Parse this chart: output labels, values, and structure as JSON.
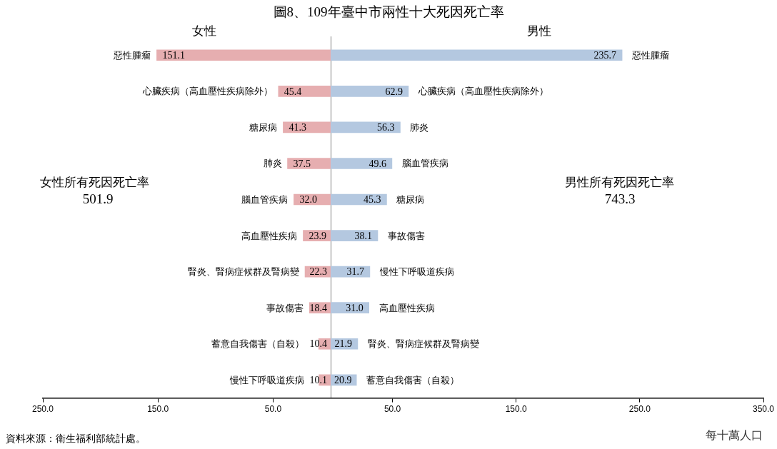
{
  "chart_data": [
    {
      "type": "bar",
      "orientation": "horizontal",
      "title": "圖8、109年臺中市兩性十大死因死亡率",
      "subtitle": "女性",
      "categories": [
        "惡性腫瘤",
        "心臟疾病（高血壓性疾病除外）",
        "糖尿病",
        "肺炎",
        "腦血管疾病",
        "高血壓性疾病",
        "腎炎、腎病症候群及腎病變",
        "事故傷害",
        "蓄意自我傷害（自殺）",
        "慢性下呼吸道疾病"
      ],
      "series": [
        {
          "color": "#e6aeb0",
          "values": [
            151.1,
            45.4,
            41.3,
            37.5,
            32.0,
            23.9,
            22.3,
            18.4,
            10.4,
            10.1
          ],
          "value_labels": [
            "151.1",
            "45.4",
            "41.3",
            "37.5",
            "32.0",
            "23.9",
            "22.3",
            "18.4",
            "10.4",
            "10.1"
          ]
        }
      ],
      "xlim": [
        250,
        0
      ],
      "xticks": [
        {
          "value": 250,
          "label": "250.0"
        },
        {
          "value": 150,
          "label": "150.0"
        },
        {
          "value": 50,
          "label": "50.0"
        }
      ],
      "grid": false,
      "legend": false,
      "annotations": [
        "女性所有死因死亡率",
        "501.9",
        "資料來源：衛生福利部統計處。"
      ]
    },
    {
      "type": "bar",
      "orientation": "horizontal",
      "subtitle": "男性",
      "xlabel": "每十萬人口",
      "categories": [
        "惡性腫瘤",
        "心臟疾病（高血壓性疾病除外）",
        "肺炎",
        "腦血管疾病",
        "糖尿病",
        "事故傷害",
        "慢性下呼吸道疾病",
        "高血壓性疾病",
        "腎炎、腎病症候群及腎病變",
        "蓄意自我傷害（自殺）"
      ],
      "series": [
        {
          "color": "#b4c8e0",
          "values": [
            235.7,
            62.9,
            56.3,
            49.6,
            45.3,
            38.1,
            31.7,
            31.0,
            21.9,
            20.9
          ],
          "value_labels": [
            "235.7",
            "62.9",
            "56.3",
            "49.6",
            "45.3",
            "38.1",
            "31.7",
            "31.0",
            "21.9",
            "20.9"
          ]
        }
      ],
      "xlim": [
        0,
        350
      ],
      "xticks": [
        {
          "value": 50,
          "label": "50.0"
        },
        {
          "value": 150,
          "label": "150.0"
        },
        {
          "value": 250,
          "label": "250.0"
        },
        {
          "value": 350,
          "label": "350.0"
        }
      ],
      "grid": false,
      "legend": false,
      "annotations": [
        "男性所有死因死亡率",
        "743.3"
      ]
    }
  ]
}
